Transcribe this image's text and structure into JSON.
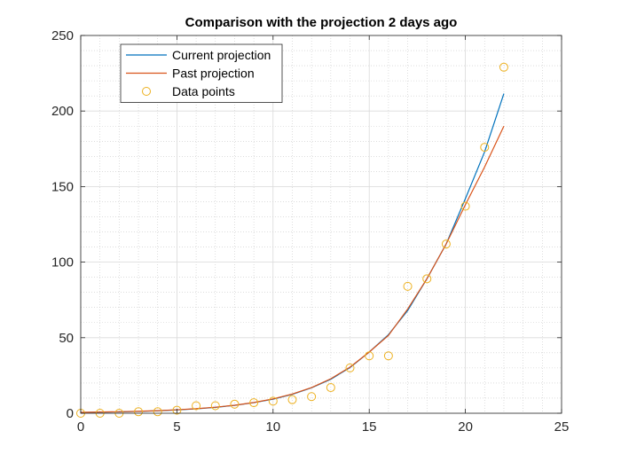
{
  "chart_data": {
    "type": "line",
    "title": "Comparison with the projection 2 days ago",
    "xlabel": "",
    "ylabel": "",
    "xlim": [
      0,
      25
    ],
    "ylim": [
      0,
      250
    ],
    "xticks": [
      0,
      5,
      10,
      15,
      20,
      25
    ],
    "yticks": [
      0,
      50,
      100,
      150,
      200,
      250
    ],
    "grid": true,
    "minor_grid": true,
    "legend_position": "top-left",
    "series": [
      {
        "name": "Current projection",
        "style": "line",
        "color": "#0072BD",
        "x": [
          0,
          1,
          2,
          3,
          4,
          5,
          6,
          7,
          8,
          9,
          10,
          11,
          12,
          13,
          14,
          15,
          16,
          17,
          18,
          19,
          20,
          21,
          22
        ],
        "y": [
          0.5,
          0.7,
          0.9,
          1.2,
          1.6,
          2.2,
          2.9,
          3.9,
          5.2,
          7.0,
          9.3,
          12.5,
          16.8,
          22.5,
          30.2,
          40.5,
          52.0,
          68.0,
          89.0,
          112.0,
          142.0,
          173.0,
          211.5
        ]
      },
      {
        "name": "Past projection",
        "style": "line",
        "color": "#D95319",
        "x": [
          0,
          1,
          2,
          3,
          4,
          5,
          6,
          7,
          8,
          9,
          10,
          11,
          12,
          13,
          14,
          15,
          16,
          17,
          18,
          19,
          20,
          21,
          22
        ],
        "y": [
          0.6,
          0.8,
          1.0,
          1.3,
          1.7,
          2.3,
          3.0,
          4.0,
          5.3,
          7.1,
          9.5,
          12.7,
          17.0,
          22.8,
          30.5,
          40.5,
          51.5,
          69.0,
          89.0,
          112.0,
          138.0,
          163.0,
          190.0
        ]
      },
      {
        "name": "Data points",
        "style": "markers",
        "color": "#EDB120",
        "x": [
          0,
          1,
          2,
          3,
          4,
          5,
          6,
          7,
          8,
          9,
          10,
          11,
          12,
          13,
          14,
          15,
          16,
          17,
          18,
          19,
          20,
          21,
          22
        ],
        "y": [
          0,
          0,
          0,
          1,
          1,
          2,
          5,
          5,
          6,
          7,
          8,
          9,
          11,
          17,
          30,
          38,
          38,
          84,
          89,
          112,
          137,
          176,
          229
        ]
      }
    ]
  }
}
